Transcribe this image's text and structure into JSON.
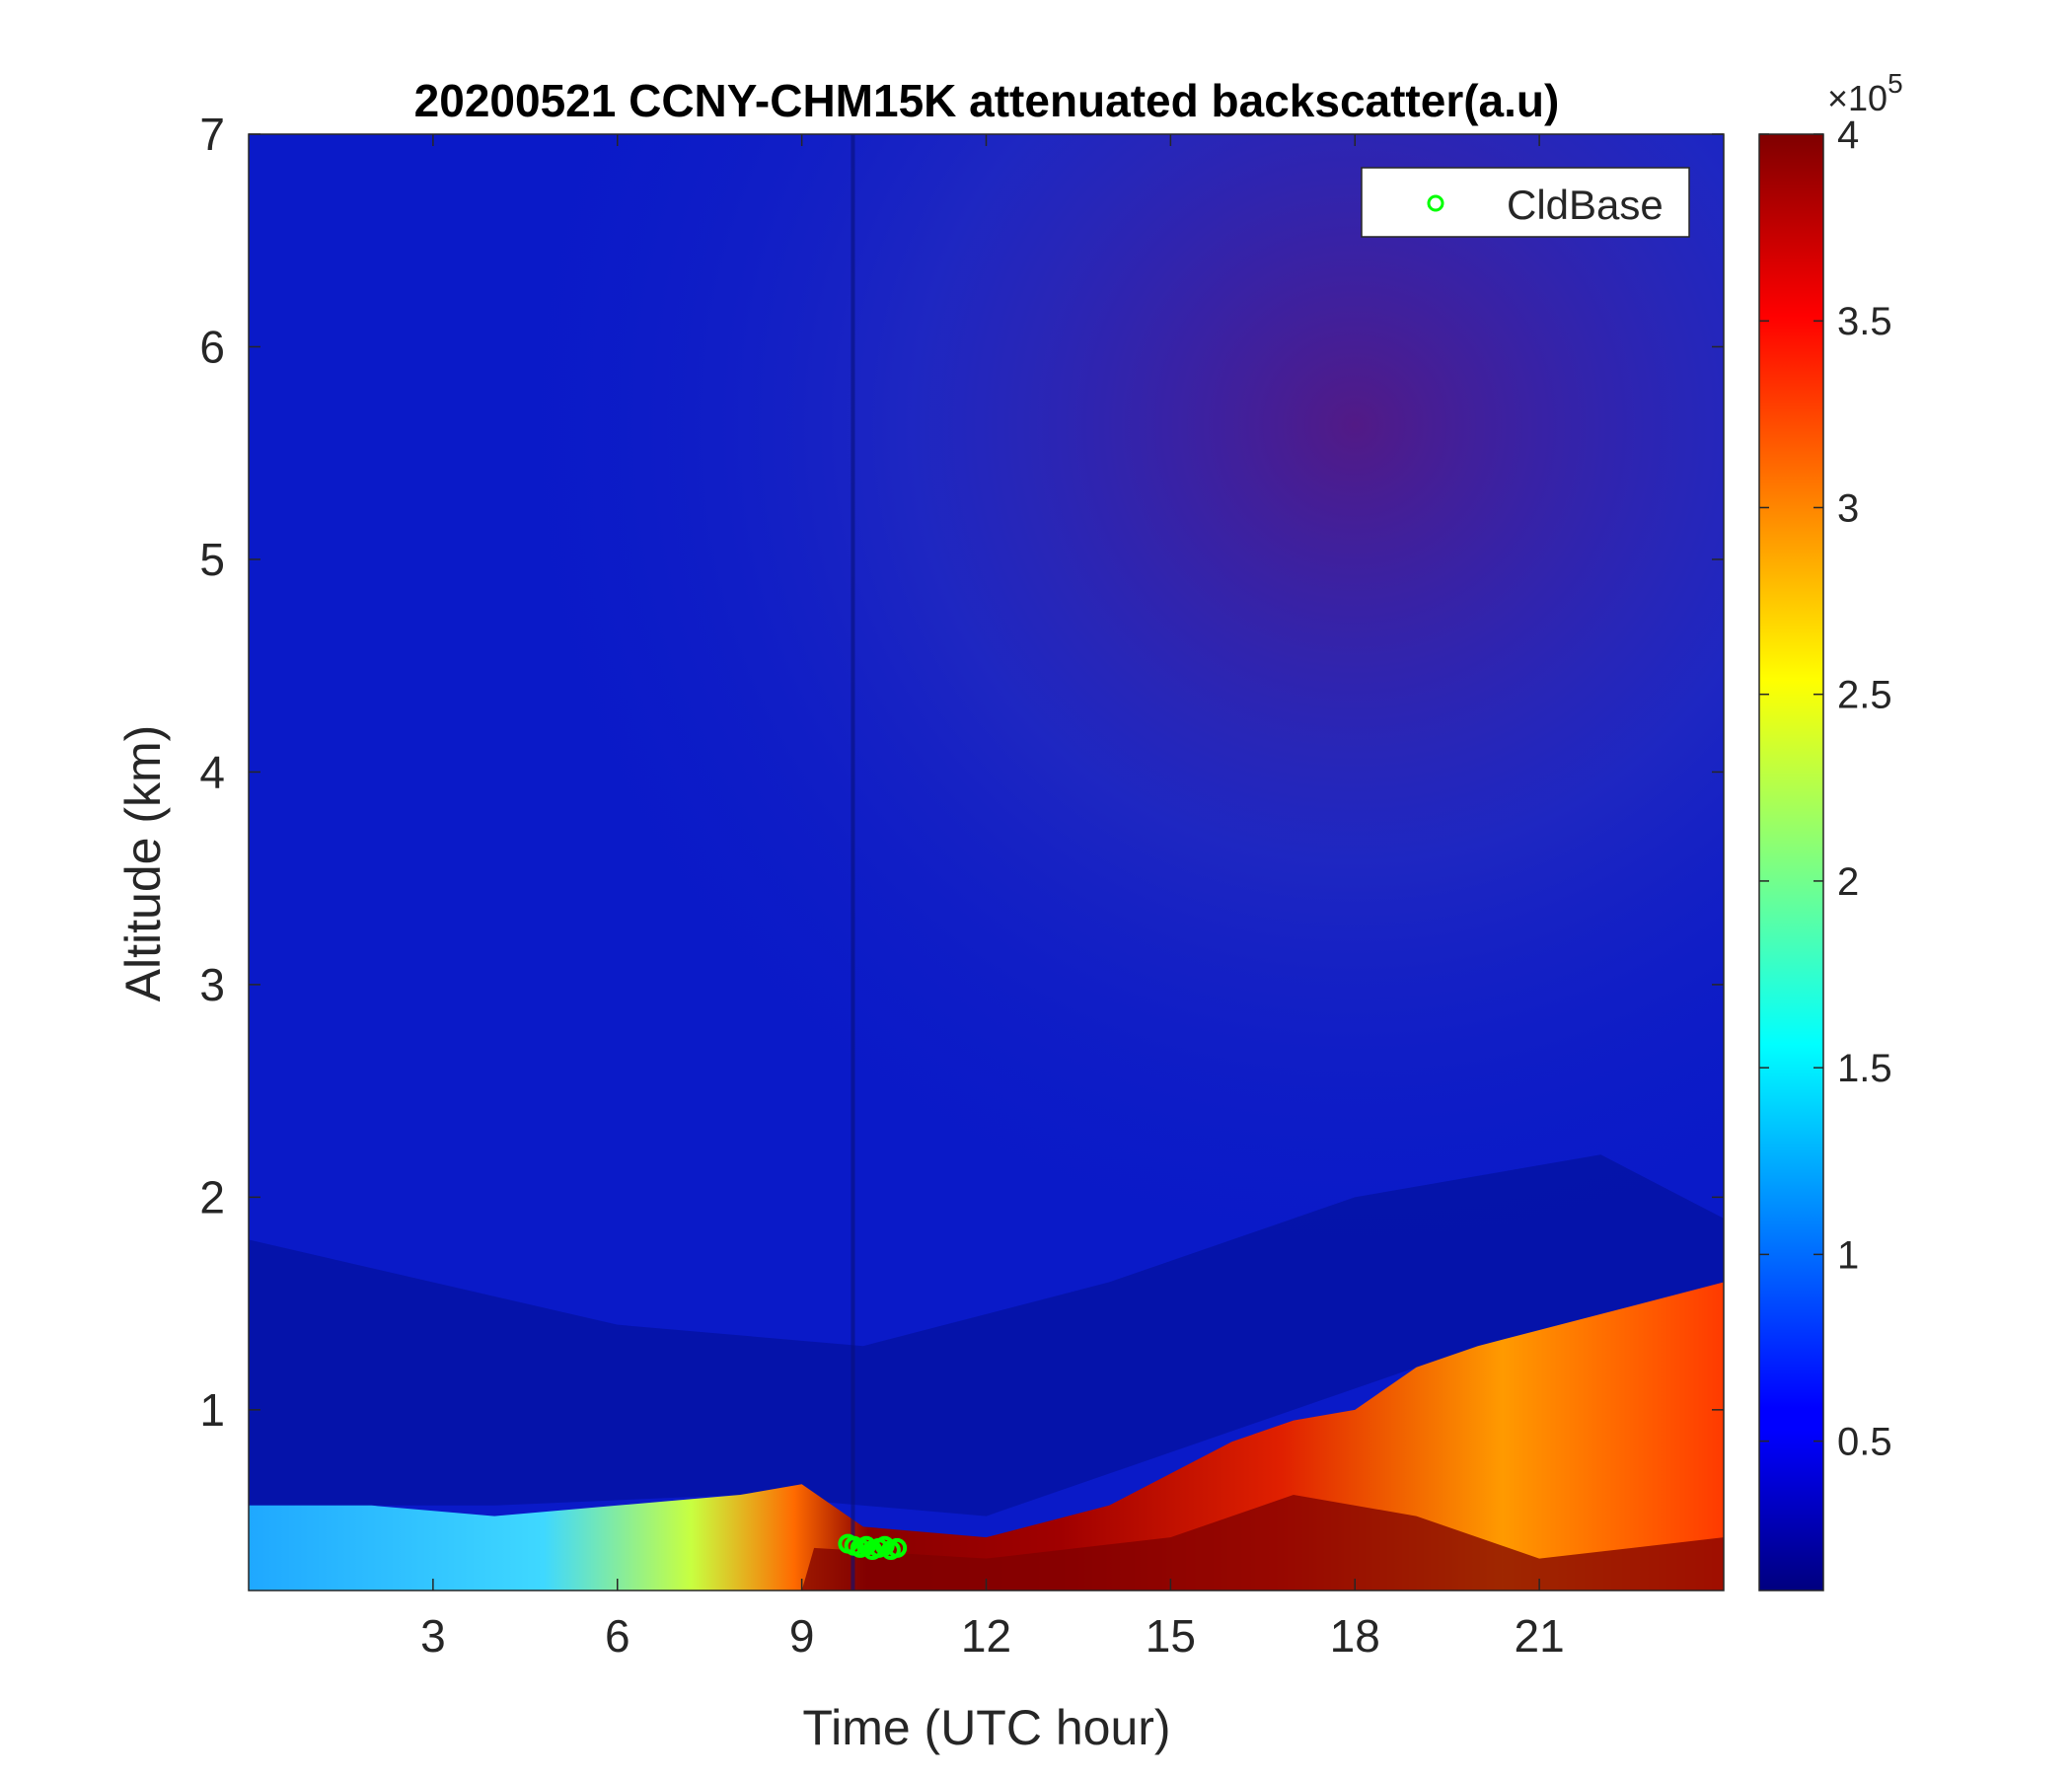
{
  "chart_data": {
    "type": "heatmap",
    "title": "20200521 CCNY-CHM15K attenuated backscatter(a.u)",
    "xlabel": "Time (UTC hour)",
    "ylabel": "Altitude (km)",
    "xlim": [
      0,
      24
    ],
    "ylim": [
      0.15,
      7
    ],
    "xticks": [
      "3",
      "6",
      "9",
      "12",
      "15",
      "18",
      "21"
    ],
    "yticks": [
      "1",
      "2",
      "3",
      "4",
      "5",
      "6",
      "7"
    ],
    "colorbar": {
      "colormap": "jet",
      "range": [
        0.1,
        4
      ],
      "ticks": [
        "0.5",
        "1",
        "1.5",
        "2",
        "2.5",
        "3",
        "3.5",
        "4"
      ],
      "exponent_label": "×10",
      "exponent_power": "5"
    },
    "boundary_layer_top_km": [
      {
        "x": 0,
        "y": 0.55
      },
      {
        "x": 2,
        "y": 0.55
      },
      {
        "x": 4,
        "y": 0.5
      },
      {
        "x": 6,
        "y": 0.55
      },
      {
        "x": 8,
        "y": 0.6
      },
      {
        "x": 9,
        "y": 0.65
      },
      {
        "x": 10,
        "y": 0.45
      },
      {
        "x": 12,
        "y": 0.4
      },
      {
        "x": 14,
        "y": 0.55
      },
      {
        "x": 15,
        "y": 0.7
      },
      {
        "x": 16,
        "y": 0.85
      },
      {
        "x": 17,
        "y": 0.95
      },
      {
        "x": 18,
        "y": 1.0
      },
      {
        "x": 19,
        "y": 1.2
      },
      {
        "x": 20,
        "y": 1.3
      },
      {
        "x": 22,
        "y": 1.45
      },
      {
        "x": 24,
        "y": 1.6
      }
    ],
    "series": [
      {
        "name": "CldBase",
        "marker": "circle",
        "color": "#00ff00",
        "points": [
          {
            "x": 9.75,
            "y": 0.37
          },
          {
            "x": 9.85,
            "y": 0.36
          },
          {
            "x": 9.95,
            "y": 0.35
          },
          {
            "x": 10.05,
            "y": 0.36
          },
          {
            "x": 10.15,
            "y": 0.34
          },
          {
            "x": 10.25,
            "y": 0.35
          },
          {
            "x": 10.35,
            "y": 0.36
          },
          {
            "x": 10.45,
            "y": 0.34
          },
          {
            "x": 10.55,
            "y": 0.35
          }
        ]
      }
    ],
    "legend_position": "top-right"
  }
}
